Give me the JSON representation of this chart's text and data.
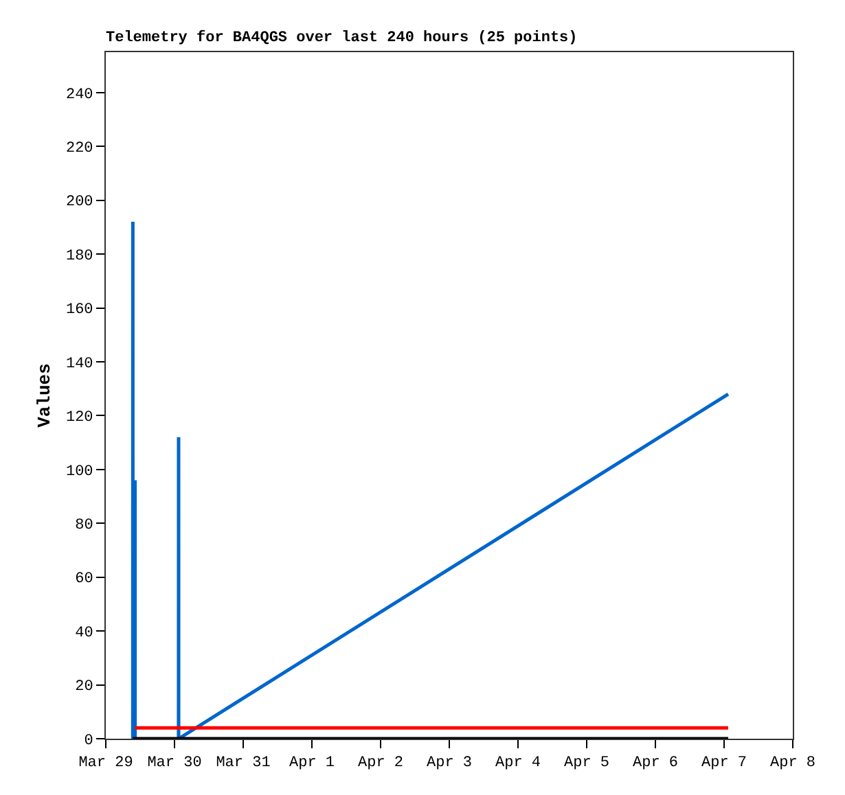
{
  "chart_data": {
    "type": "line",
    "title": "Telemetry for BA4QGS over last 240 hours (25 points)",
    "ylabel": "Values",
    "series": [
      {
        "color": "#0066cc",
        "x": [
          "--03-29T09:26",
          "--03-29T09:27",
          "--03-29T09:28",
          "--03-29T09:50",
          "--03-29T10:12",
          "--03-29T10:13",
          "--03-29T10:14",
          "--03-29T18:00",
          "--03-30T01:25",
          "--03-30T01:26",
          "--03-30T01:27",
          "--04-07T01:26"
        ],
        "values": [
          0,
          192,
          0,
          null,
          0,
          96,
          0,
          null,
          0,
          112,
          0,
          128
        ]
      },
      {
        "color": "#000000",
        "x": [
          "--03-29T09:26",
          "--04-07T01:26"
        ],
        "values": [
          0,
          0
        ]
      },
      {
        "color": "#ff0000",
        "x": [
          "--03-29T10:14",
          "--04-07T01:26"
        ],
        "values": [
          4,
          4
        ]
      }
    ],
    "xlim": [
      "--03-29",
      "--04-08"
    ],
    "xticks": [
      {
        "value": "--03-29",
        "label": "Mar 29"
      },
      {
        "value": "--03-30",
        "label": "Mar 30"
      },
      {
        "value": "--03-31",
        "label": "Mar 31"
      },
      {
        "value": "--04-01",
        "label": "Apr 1"
      },
      {
        "value": "--04-02",
        "label": "Apr 2"
      },
      {
        "value": "--04-03",
        "label": "Apr 3"
      },
      {
        "value": "--04-04",
        "label": "Apr 4"
      },
      {
        "value": "--04-05",
        "label": "Apr 5"
      },
      {
        "value": "--04-06",
        "label": "Apr 6"
      },
      {
        "value": "--04-07",
        "label": "Apr 7"
      },
      {
        "value": "--04-08",
        "label": "Apr 8"
      }
    ],
    "ylim": [
      0,
      255
    ],
    "yticks": [
      0,
      20,
      40,
      60,
      80,
      100,
      120,
      140,
      160,
      180,
      200,
      220,
      240
    ],
    "marker": "none",
    "line_style": "solid"
  }
}
